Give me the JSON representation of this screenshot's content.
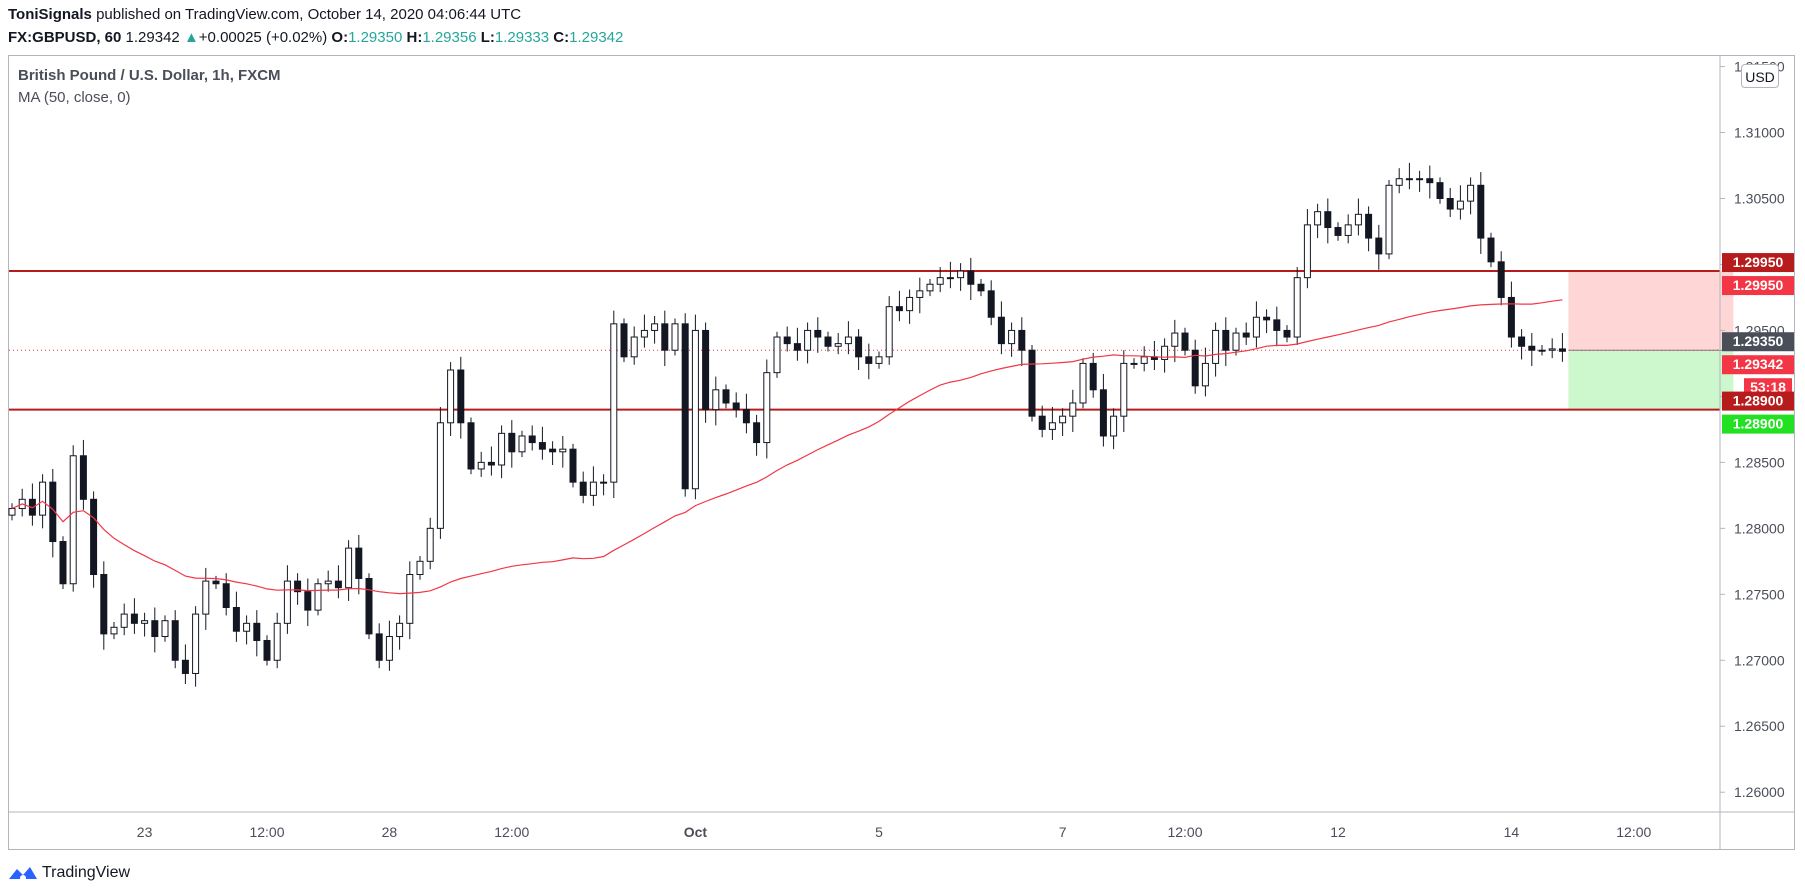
{
  "header": {
    "author": "ToniSignals",
    "published_text": "published on TradingView.com, October 14, 2020 04:06:44 UTC",
    "symbol": "FX:GBPUSD, 60",
    "last_price": "1.29342",
    "change_arrow": "▲",
    "change": "+0.00025 (+0.02%)",
    "o_label": "O:",
    "o_value": "1.29350",
    "h_label": "H:",
    "h_value": "1.29356",
    "l_label": "L:",
    "l_value": "1.29333",
    "c_label": "C:",
    "c_value": "1.29342"
  },
  "legend": {
    "instrument": "British Pound / U.S. Dollar, 1h, FXCM",
    "indicator": "MA (50, close, 0)"
  },
  "currency_button": "USD",
  "footer": {
    "brand": "TradingView",
    "logo_icon": "tradingview-logo-icon"
  },
  "colors": {
    "up": "#26a69a",
    "down": "#131722",
    "candle": "#131722",
    "ma": "#f23645",
    "level": "#b71c1c",
    "stop_zone": "#ffd6d6",
    "target_zone": "#cdf7cd",
    "price_tag": "#4a4e59",
    "red_tag": "#f23645",
    "green_tag": "#22e022"
  },
  "chart_data": {
    "type": "candlestick",
    "title": "British Pound / U.S. Dollar, 1h, FXCM",
    "y_axis": {
      "range": [
        1.2585,
        1.3158
      ],
      "ticks": [
        "1.26000",
        "1.26500",
        "1.27000",
        "1.27500",
        "1.28000",
        "1.28500",
        "1.29000",
        "1.29500",
        "1.30000",
        "1.30500",
        "1.31000",
        "1.31500"
      ]
    },
    "x_axis": {
      "ticks": [
        {
          "label": "23",
          "bold": false,
          "bar": 13
        },
        {
          "label": "12:00",
          "bold": false,
          "bar": 25
        },
        {
          "label": "28",
          "bold": false,
          "bar": 37
        },
        {
          "label": "12:00",
          "bold": false,
          "bar": 49
        },
        {
          "label": "Oct",
          "bold": true,
          "bar": 67
        },
        {
          "label": "5",
          "bold": false,
          "bar": 85
        },
        {
          "label": "7",
          "bold": false,
          "bar": 103
        },
        {
          "label": "12:00",
          "bold": false,
          "bar": 115
        },
        {
          "label": "12",
          "bold": false,
          "bar": 130
        },
        {
          "label": "14",
          "bold": false,
          "bar": 147
        },
        {
          "label": "12:00",
          "bold": false,
          "bar": 159
        }
      ]
    },
    "close_prices": [
      1.2815,
      1.2822,
      1.281,
      1.2835,
      1.279,
      1.2758,
      1.2855,
      1.2822,
      1.2765,
      1.272,
      1.2725,
      1.2735,
      1.2728,
      1.273,
      1.2718,
      1.273,
      1.27,
      1.269,
      1.2735,
      1.276,
      1.2758,
      1.274,
      1.2722,
      1.2728,
      1.2715,
      1.27,
      1.2728,
      1.276,
      1.2752,
      1.2738,
      1.2758,
      1.276,
      1.2755,
      1.2785,
      1.2762,
      1.272,
      1.27,
      1.2718,
      1.2728,
      1.2765,
      1.2775,
      1.28,
      1.288,
      1.292,
      1.288,
      1.2845,
      1.285,
      1.2848,
      1.2872,
      1.2858,
      1.287,
      1.2865,
      1.286,
      1.2858,
      1.286,
      1.2835,
      1.2825,
      1.2835,
      1.2835,
      1.2955,
      1.293,
      1.2945,
      1.295,
      1.2955,
      1.2935,
      1.2955,
      1.283,
      1.295,
      1.289,
      1.2905,
      1.2895,
      1.289,
      1.288,
      1.2865,
      1.2918,
      1.2945,
      1.294,
      1.2935,
      1.295,
      1.2945,
      1.2938,
      1.294,
      1.2945,
      1.293,
      1.2925,
      1.293,
      1.2968,
      1.2965,
      1.2975,
      1.298,
      1.2985,
      1.299,
      1.299,
      1.2995,
      1.2985,
      1.298,
      1.296,
      1.294,
      1.295,
      1.2935,
      1.2885,
      1.2875,
      1.288,
      1.2885,
      1.2895,
      1.2925,
      1.2905,
      1.287,
      1.2885,
      1.2925,
      1.2925,
      1.293,
      1.2928,
      1.2938,
      1.2948,
      1.2935,
      1.2908,
      1.2925,
      1.295,
      1.2935,
      1.2948,
      1.2945,
      1.296,
      1.2958,
      1.295,
      1.2945,
      1.299,
      1.303,
      1.304,
      1.3028,
      1.3022,
      1.303,
      1.3038,
      1.302,
      1.3008,
      1.306,
      1.3065,
      1.3065,
      1.3065,
      1.3062,
      1.305,
      1.3042,
      1.3048,
      1.306,
      1.302,
      1.3002,
      1.2975,
      1.2945,
      1.2938,
      1.2935,
      1.2935,
      1.2936,
      1.29342
    ],
    "ma_period": 50,
    "levels": [
      {
        "price": 1.2995,
        "label": "1.29950"
      },
      {
        "price": 1.289,
        "label": "1.28900"
      }
    ],
    "position": {
      "entry": 1.2935,
      "stop": 1.2995,
      "target": 1.289,
      "tags": [
        "1.29950",
        "1.29950",
        "1.29350",
        "1.29342",
        "53:18",
        "1.28900",
        "1.28900"
      ]
    }
  }
}
